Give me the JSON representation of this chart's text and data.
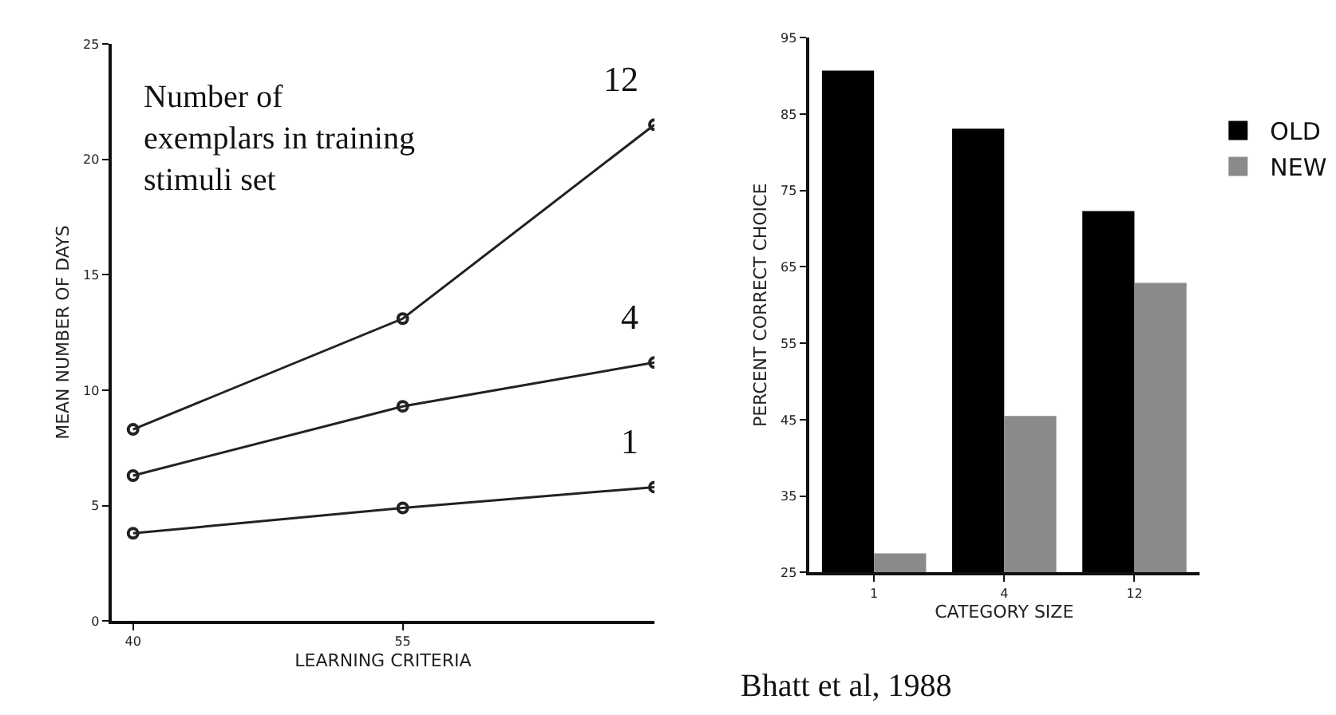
{
  "chart_data": [
    {
      "type": "line",
      "xlabel": "LEARNING CRITERIA",
      "ylabel": "MEAN NUMBER OF DAYS",
      "x": [
        40,
        55,
        69
      ],
      "xlim": [
        38.8,
        69
      ],
      "xticks": [
        40,
        55
      ],
      "ylim": [
        0,
        25
      ],
      "yticks": [
        0,
        5,
        10,
        15,
        20,
        25
      ],
      "legend": false,
      "marker": "circle",
      "line_style": "solid",
      "annotations": [
        "Number of\nexemplars in training\nstimuli set"
      ],
      "series": [
        {
          "name": "12",
          "color": "#222222",
          "values": [
            8.3,
            13.1,
            21.5
          ]
        },
        {
          "name": "4",
          "color": "#222222",
          "values": [
            6.3,
            9.3,
            11.2
          ]
        },
        {
          "name": "1",
          "color": "#222222",
          "values": [
            3.8,
            4.9,
            5.8
          ]
        }
      ]
    },
    {
      "type": "bar",
      "xlabel": "CATEGORY SIZE",
      "ylabel": "PERCENT CORRECT CHOICE",
      "categories": [
        "1",
        "4",
        "12"
      ],
      "ylim": [
        25,
        95
      ],
      "yticks": [
        25,
        35,
        45,
        55,
        65,
        75,
        85,
        95
      ],
      "legend": "top right",
      "annotations": [
        "Bhatt et al, 1988"
      ],
      "series": [
        {
          "name": "OLD",
          "color": "#000000",
          "values": [
            90.7,
            83.1,
            72.3
          ]
        },
        {
          "name": "NEW",
          "color": "#8a8a8a",
          "values": [
            27.5,
            45.5,
            62.9
          ]
        }
      ]
    }
  ]
}
